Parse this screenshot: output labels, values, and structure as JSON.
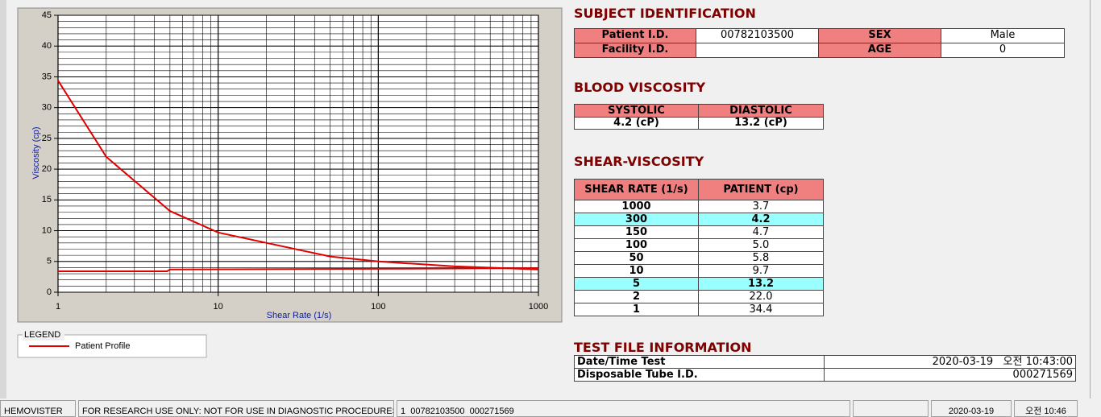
{
  "chart_data": {
    "type": "line",
    "x_label": "Shear Rate (1/s)",
    "y_label": "Viscosity (cp)",
    "x_log": true,
    "xlim": [
      1,
      1000
    ],
    "xticks": [
      1,
      10,
      100,
      1000
    ],
    "x_minor_ticks": [
      2,
      3,
      4,
      5,
      6,
      7,
      8,
      9,
      20,
      30,
      40,
      50,
      60,
      70,
      80,
      90,
      200,
      300,
      400,
      500,
      600,
      700,
      800,
      900
    ],
    "ylim": [
      0,
      45
    ],
    "yticks": [
      0,
      5,
      10,
      15,
      20,
      25,
      30,
      35,
      40,
      45
    ],
    "y_minor_step": 1,
    "grid": true,
    "series": [
      {
        "name": "Patient Profile",
        "color": "#e00000",
        "x": [
          1,
          2,
          5,
          10,
          50,
          100,
          150,
          300,
          1000
        ],
        "values": [
          34.4,
          22.0,
          13.2,
          9.7,
          5.8,
          5.0,
          4.7,
          4.2,
          3.7
        ]
      },
      {
        "color": "#e00000",
        "x": [
          1,
          4.8,
          5,
          1000
        ],
        "values": [
          3.4,
          3.4,
          3.7,
          3.9
        ]
      }
    ],
    "legend_title": "LEGEND"
  },
  "subject": {
    "title": "SUBJECT IDENTIFICATION",
    "rows": [
      [
        "Patient I.D.",
        "00782103500",
        "SEX",
        "Male"
      ],
      [
        "Facility I.D.",
        "",
        "AGE",
        "0"
      ]
    ]
  },
  "blood_viscosity": {
    "title": "BLOOD VISCOSITY",
    "header": [
      "SYSTOLIC",
      "DIASTOLIC"
    ],
    "values": [
      "4.2 (cP)",
      "13.2 (cP)"
    ]
  },
  "shear_viscosity": {
    "title": "SHEAR-VISCOSITY",
    "header": [
      "SHEAR RATE (1/s)",
      "PATIENT (cp)"
    ],
    "rows": [
      {
        "shear_rate": "1000",
        "patient": "3.7",
        "highlight": false
      },
      {
        "shear_rate": "300",
        "patient": "4.2",
        "highlight": true
      },
      {
        "shear_rate": "150",
        "patient": "4.7",
        "highlight": false
      },
      {
        "shear_rate": "100",
        "patient": "5.0",
        "highlight": false
      },
      {
        "shear_rate": "50",
        "patient": "5.8",
        "highlight": false
      },
      {
        "shear_rate": "10",
        "patient": "9.7",
        "highlight": false
      },
      {
        "shear_rate": "5",
        "patient": "13.2",
        "highlight": true
      },
      {
        "shear_rate": "2",
        "patient": "22.0",
        "highlight": false
      },
      {
        "shear_rate": "1",
        "patient": "34.4",
        "highlight": false
      }
    ]
  },
  "test_file": {
    "title": "TEST FILE INFORMATION",
    "rows": [
      [
        "Date/Time Test",
        "2020-03-19   오전 10:43:00"
      ],
      [
        "Disposable Tube I.D.",
        "000271569"
      ]
    ]
  },
  "status_bar": [
    "HEMOVISTER",
    "FOR RESEARCH USE ONLY: NOT FOR USE IN DIAGNOSTIC PROCEDURES",
    "1  00782103500  000271569",
    "",
    "2020-03-19",
    "오전 10:46"
  ]
}
